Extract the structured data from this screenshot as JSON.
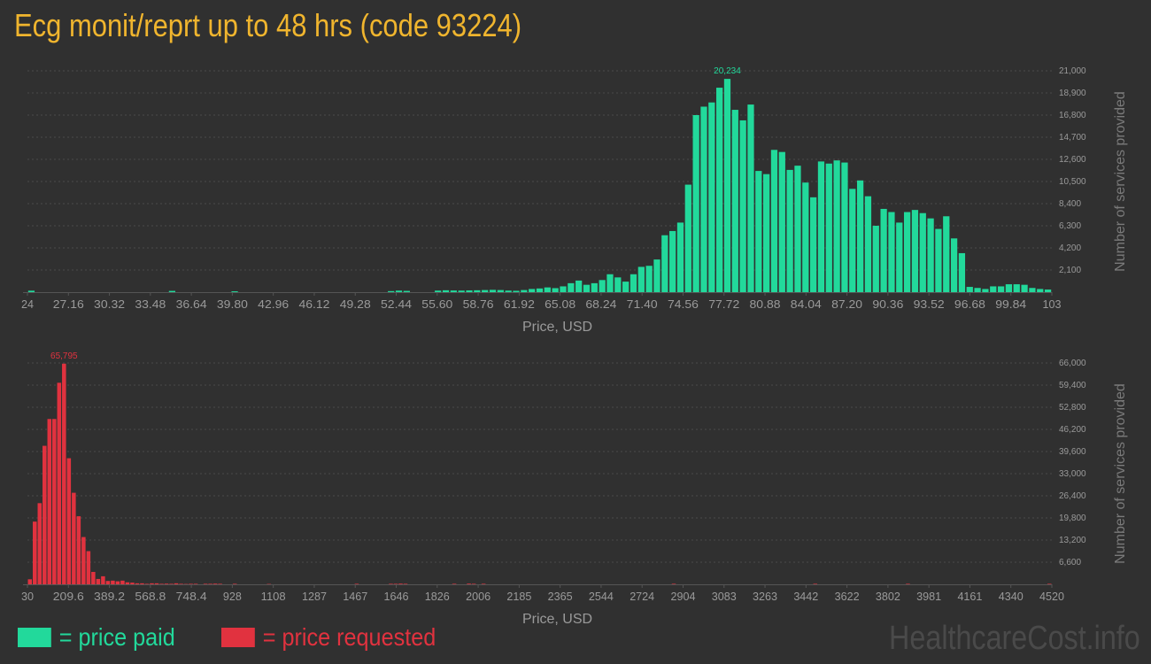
{
  "page": {
    "title": "Ecg monit/reprt up to 48 hrs (code 93224)",
    "watermark": "HealthcareCost.info",
    "legend": {
      "paid": "= price paid",
      "requested": "= price requested"
    }
  },
  "chart_data": [
    {
      "type": "bar",
      "id": "paid",
      "color": "#22d99b",
      "xlabel": "Price, USD",
      "ylabel": "Number of services provided",
      "ylim": [
        0,
        21000
      ],
      "yticks": [
        "2,100",
        "4,200",
        "6,300",
        "8,400",
        "10,500",
        "12,600",
        "14,700",
        "16,800",
        "18,900",
        "21,000"
      ],
      "xticks": [
        "24",
        "27.16",
        "30.32",
        "33.48",
        "36.64",
        "39.80",
        "42.96",
        "46.12",
        "49.28",
        "52.44",
        "55.60",
        "58.76",
        "61.92",
        "65.08",
        "68.24",
        "71.40",
        "74.56",
        "77.72",
        "80.88",
        "84.04",
        "87.20",
        "90.36",
        "93.52",
        "96.68",
        "99.84",
        "103"
      ],
      "peak_label": "20,234",
      "values": [
        140,
        0,
        0,
        0,
        0,
        0,
        0,
        0,
        0,
        0,
        0,
        0,
        0,
        0,
        0,
        0,
        0,
        0,
        120,
        0,
        0,
        0,
        0,
        0,
        0,
        0,
        80,
        0,
        0,
        0,
        0,
        0,
        0,
        0,
        0,
        0,
        0,
        0,
        0,
        0,
        0,
        0,
        0,
        0,
        0,
        0,
        100,
        150,
        120,
        0,
        0,
        0,
        150,
        180,
        160,
        150,
        170,
        180,
        200,
        220,
        200,
        150,
        130,
        200,
        300,
        350,
        450,
        380,
        550,
        850,
        1100,
        700,
        850,
        1150,
        1700,
        1400,
        1000,
        1700,
        2400,
        2500,
        3100,
        5400,
        5800,
        6600,
        10200,
        16800,
        17600,
        18000,
        19400,
        20234,
        17300,
        16300,
        17800,
        11500,
        11200,
        13500,
        13300,
        11600,
        12000,
        10400,
        9000,
        12400,
        12200,
        12500,
        12300,
        9800,
        10600,
        9100,
        6300,
        7900,
        7600,
        6600,
        7600,
        7800,
        7500,
        7000,
        6000,
        7200,
        5100,
        3700,
        500,
        400,
        300,
        550,
        550,
        750,
        750,
        700,
        400,
        300,
        250
      ]
    },
    {
      "type": "bar",
      "id": "requested",
      "color": "#e1323f",
      "xlabel": "Price, USD",
      "ylabel": "Number of services provided",
      "ylim": [
        0,
        66000
      ],
      "yticks": [
        "6,600",
        "13,200",
        "19,800",
        "26,400",
        "33,000",
        "39,600",
        "46,200",
        "52,800",
        "59,400",
        "66,000"
      ],
      "xticks": [
        "30",
        "209.6",
        "389.2",
        "568.8",
        "748.4",
        "928",
        "1108",
        "1287",
        "1467",
        "1646",
        "1826",
        "2006",
        "2185",
        "2365",
        "2544",
        "2724",
        "2904",
        "3083",
        "3263",
        "3442",
        "3622",
        "3802",
        "3981",
        "4161",
        "4340",
        "4520"
      ],
      "peak_label": "65,795",
      "values": [
        1500,
        18700,
        24200,
        41300,
        49300,
        49300,
        60100,
        65795,
        37600,
        27300,
        20300,
        14100,
        9900,
        3700,
        1600,
        2400,
        1000,
        1100,
        900,
        1100,
        600,
        500,
        300,
        300,
        150,
        300,
        300,
        150,
        200,
        150,
        300,
        150,
        100,
        150,
        150,
        0,
        150,
        150,
        200,
        150,
        0,
        0,
        150,
        0,
        0,
        0,
        0,
        0,
        0,
        100,
        0,
        0,
        0,
        0,
        0,
        0,
        0,
        0,
        0,
        0,
        0,
        0,
        0,
        0,
        0,
        0,
        0,
        150,
        0,
        0,
        0,
        0,
        0,
        0,
        150,
        150,
        200,
        150,
        0,
        0,
        0,
        0,
        0,
        0,
        0,
        0,
        0,
        150,
        0,
        0,
        200,
        150,
        0,
        150,
        0,
        0,
        0,
        0,
        0,
        0,
        0,
        0,
        0,
        0,
        0,
        0,
        0,
        0,
        0,
        0,
        0,
        0,
        0,
        0,
        0,
        0,
        0,
        0,
        0,
        0,
        0,
        0,
        0,
        0,
        0,
        0,
        0,
        0,
        0,
        0,
        0,
        0,
        150,
        0,
        0,
        0,
        0,
        0,
        0,
        0,
        0,
        0,
        0,
        0,
        0,
        0,
        0,
        0,
        0,
        0,
        0,
        0,
        0,
        0,
        0,
        0,
        0,
        0,
        0,
        0,
        0,
        150,
        0,
        0,
        0,
        0,
        0,
        0,
        0,
        0,
        0,
        0,
        0,
        0,
        0,
        0,
        0,
        0,
        0,
        0,
        150,
        0,
        0,
        0,
        0,
        0,
        0,
        0,
        0,
        0,
        0,
        0,
        0,
        0,
        0,
        0,
        0,
        0,
        0,
        0,
        0,
        0,
        0,
        0,
        0,
        0,
        0,
        0,
        0,
        150
      ]
    }
  ]
}
